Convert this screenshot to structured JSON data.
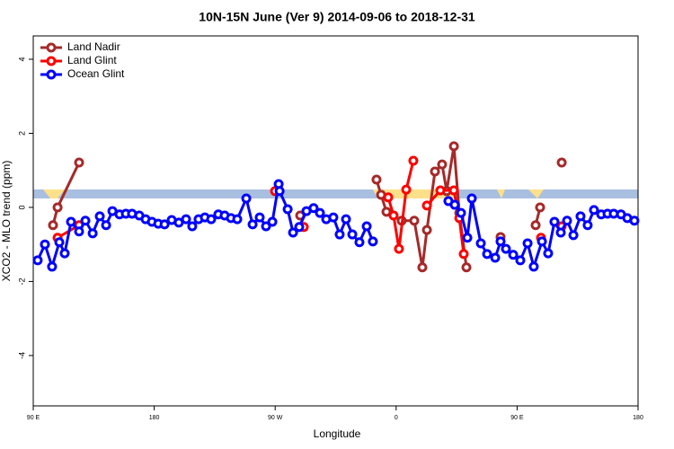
{
  "chart_data": {
    "type": "line",
    "title": "10N-15N June (Ver 9)   2014-09-06 to 2018-12-31",
    "x_label": "Longitude",
    "y_label": "XCO2 - MLO trend (ppm)",
    "xlim": [
      90,
      540
    ],
    "ylim": [
      -5.36,
      4.63
    ],
    "xticks": [
      {
        "value": 90,
        "label": "90 E"
      },
      180,
      {
        "value": 270,
        "label": "90 W"
      },
      {
        "value": 360,
        "label": "0"
      },
      {
        "value": 450,
        "label": "90 E"
      },
      {
        "value": 540,
        "label": "180"
      }
    ],
    "yticks": [
      -4,
      -2,
      0,
      2,
      4
    ],
    "legend": "top-left",
    "series": [
      {
        "name": "Land Nadir",
        "color": "#a52a2a",
        "x": [
          104.7,
          108.1,
          124.1,
          null,
          288.6,
          null,
          345.4,
          348.8,
          352.8,
          364.1,
          373.5,
          379.5,
          382.9,
          388.9,
          394.2,
          397.6,
          403.0,
          407.0,
          412.3,
          null,
          437.7,
          null,
          463.8,
          467.1,
          null,
          483.2
        ],
        "values": [
          -0.48,
          0,
          1.21,
          null,
          -0.22,
          null,
          0.75,
          0.34,
          -0.12,
          -0.36,
          -0.36,
          -1.62,
          -0.61,
          0.97,
          1.16,
          0.44,
          1.65,
          -0.15,
          -1.62,
          null,
          -0.8,
          null,
          -0.48,
          0,
          null,
          1.21
        ]
      },
      {
        "name": "Land Glint",
        "color": "#ff0000",
        "x": [
          108.1,
          124.1,
          null,
          269.9,
          null,
          291.3,
          null,
          354.1,
          358.1,
          362.1,
          367.5,
          372.8,
          null,
          382.9,
          392.9,
          402.9,
          407.0,
          410.3,
          null,
          467.8,
          null,
          483.2
        ],
        "values": [
          -0.82,
          -0.48,
          null,
          0.44,
          null,
          -0.53,
          null,
          0.27,
          -0.22,
          -1.12,
          0.48,
          1.26,
          null,
          0.05,
          0.46,
          0.46,
          -0.29,
          -1.26,
          null,
          -0.82,
          null,
          -0.51
        ]
      },
      {
        "name": "Ocean Glint",
        "color": "#0000ff",
        "x": [
          93.3,
          98.7,
          104.0,
          109.4,
          113.4,
          118.1,
          124.1,
          128.8,
          134.2,
          139.5,
          144.2,
          148.9,
          154.2,
          158.9,
          163.5,
          168.9,
          173.6,
          178.3,
          183.0,
          187.7,
          193.0,
          198.3,
          203.7,
          208.3,
          213.0,
          217.7,
          222.4,
          227.7,
          232.4,
          237.1,
          241.8,
          248.5,
          253.2,
          258.5,
          263.2,
          267.9,
          272.6,
          273.3,
          279.3,
          283.3,
          287.9,
          293.3,
          298.6,
          303.3,
          308.0,
          313.3,
          318.0,
          322.7,
          327.4,
          332.7,
          338.1,
          342.7,
          null,
          398.9,
          403.6,
          408.3,
          413.0,
          416.3,
          423.0,
          427.7,
          433.7,
          437.7,
          441.7,
          447.1,
          452.4,
          457.8,
          462.4,
          468.5,
          473.1,
          477.8,
          482.5,
          487.2,
          491.9,
          497.2,
          502.5,
          507.2,
          512.6,
          517.3,
          521.9,
          527.3,
          532.0,
          537.3
        ],
        "values": [
          -1.43,
          -1.0,
          -1.6,
          -0.94,
          -1.24,
          -0.39,
          -0.65,
          -0.36,
          -0.7,
          -0.24,
          -0.48,
          -0.1,
          -0.19,
          -0.17,
          -0.17,
          -0.22,
          -0.32,
          -0.39,
          -0.44,
          -0.46,
          -0.34,
          -0.41,
          -0.32,
          -0.51,
          -0.32,
          -0.27,
          -0.32,
          -0.19,
          -0.22,
          -0.29,
          -0.32,
          0.24,
          -0.46,
          -0.27,
          -0.51,
          -0.39,
          0.63,
          0.44,
          -0.05,
          -0.68,
          -0.53,
          -0.1,
          -0.02,
          -0.15,
          -0.32,
          -0.27,
          -0.73,
          -0.32,
          -0.73,
          -0.94,
          -0.51,
          -0.92,
          null,
          0.17,
          0.07,
          -0.15,
          -0.82,
          0.24,
          -0.97,
          -1.26,
          -1.36,
          -0.92,
          -1.12,
          -1.28,
          -1.43,
          -0.97,
          -1.6,
          -0.92,
          -1.24,
          -0.39,
          -0.68,
          -0.36,
          -0.75,
          -0.24,
          -0.48,
          -0.07,
          -0.19,
          -0.17,
          -0.17,
          -0.19,
          -0.29,
          -0.36
        ]
      }
    ]
  }
}
